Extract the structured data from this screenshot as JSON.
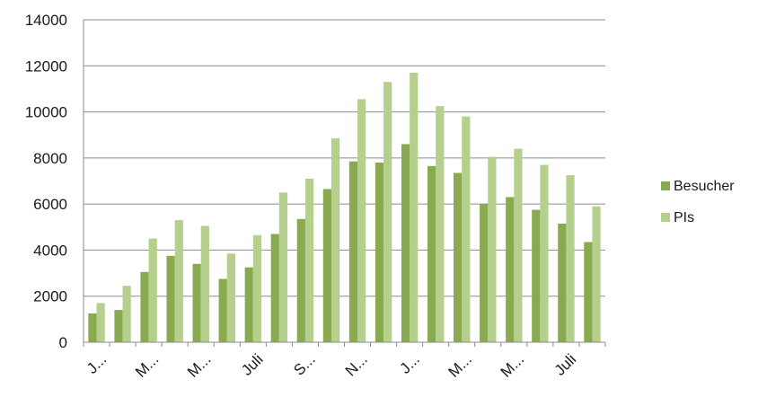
{
  "chart_data": {
    "type": "bar",
    "ylim": [
      0,
      14000
    ],
    "yticks": [
      0,
      2000,
      4000,
      6000,
      8000,
      10000,
      12000,
      14000
    ],
    "grid": true,
    "legend_position": "right",
    "categories": [
      "J...",
      "",
      "M...",
      "",
      "M...",
      "",
      "Juli",
      "",
      "S...",
      "",
      "N...",
      "",
      "J...",
      "",
      "M...",
      "",
      "M...",
      "",
      "Juli",
      ""
    ],
    "series": [
      {
        "name": "Besucher",
        "color": "#8aaa50",
        "values": [
          1250,
          1400,
          3050,
          3750,
          3400,
          2750,
          3250,
          4700,
          5350,
          6650,
          7850,
          7800,
          8600,
          7650,
          7350,
          6000,
          6300,
          5750,
          5150,
          4350
        ]
      },
      {
        "name": "PIs",
        "color": "#b5cf8c",
        "values": [
          1700,
          2450,
          4500,
          5300,
          5050,
          3850,
          4650,
          6500,
          7100,
          8850,
          10550,
          11300,
          11700,
          10250,
          9800,
          8050,
          8400,
          7700,
          7250,
          5900
        ]
      }
    ]
  }
}
